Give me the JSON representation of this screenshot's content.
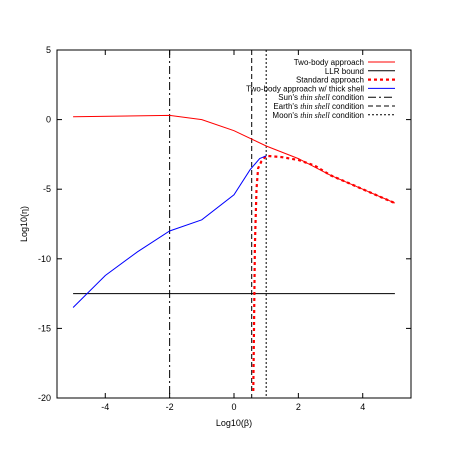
{
  "chart_data": {
    "type": "line",
    "xlabel": "Log10(β)",
    "ylabel": "Log10(η)",
    "xlim": [
      -5.5,
      5.5
    ],
    "ylim": [
      -20,
      5
    ],
    "xticks": [
      -4,
      -2,
      0,
      2,
      4
    ],
    "yticks": [
      5,
      0,
      -5,
      -10,
      -15,
      -20
    ],
    "grid": false,
    "legend_position": "top-right",
    "series": [
      {
        "name": "Two-body approach",
        "color": "#ff0000",
        "style": "solid",
        "x": [
          -5,
          -2,
          -1,
          0,
          1,
          2,
          3,
          4,
          5
        ],
        "y": [
          0.2,
          0.3,
          0.0,
          -0.8,
          -1.9,
          -2.8,
          -4.0,
          -5.0,
          -6.0
        ]
      },
      {
        "name": "LLR bound",
        "color": "#000000",
        "style": "solid",
        "x": [
          -5,
          5
        ],
        "y": [
          -12.5,
          -12.5
        ]
      },
      {
        "name": "Standard approach",
        "color": "#ff0000",
        "style": "dotted-thick",
        "x": [
          0.6,
          0.62,
          0.65,
          0.7,
          0.75,
          0.85,
          1.0,
          1.5,
          2.0,
          2.5,
          3.0,
          3.5,
          4.0,
          4.5,
          5.0
        ],
        "y": [
          -19.5,
          -15.0,
          -9.0,
          -5.0,
          -3.5,
          -3.0,
          -2.6,
          -2.7,
          -2.9,
          -3.3,
          -4.0,
          -4.5,
          -5.0,
          -5.5,
          -6.0
        ]
      },
      {
        "name": "Two-body approach w/ thick shell",
        "color": "#0000ff",
        "style": "solid",
        "x": [
          -5,
          -4,
          -3,
          -2,
          -1,
          0,
          0.5,
          0.8,
          1.0
        ],
        "y": [
          -13.5,
          -11.2,
          -9.5,
          -8.0,
          -7.2,
          -5.4,
          -3.6,
          -2.8,
          -2.6
        ]
      }
    ],
    "vlines": [
      {
        "name": "Sun's thin shell condition",
        "italic": "thin shell",
        "prefix": "Sun's ",
        "suffix": " condition",
        "x": -2.0,
        "style": "dash-dot",
        "color": "#000000"
      },
      {
        "name": "Earth's thin shell condition",
        "italic": "thin shell",
        "prefix": "Earth's ",
        "suffix": " condition",
        "x": 0.55,
        "style": "dashed",
        "color": "#000000"
      },
      {
        "name": "Moon's thin shell condition",
        "italic": "thin shell",
        "prefix": "Moon's ",
        "suffix": " condition",
        "x": 1.0,
        "style": "dotted",
        "color": "#000000"
      }
    ]
  }
}
